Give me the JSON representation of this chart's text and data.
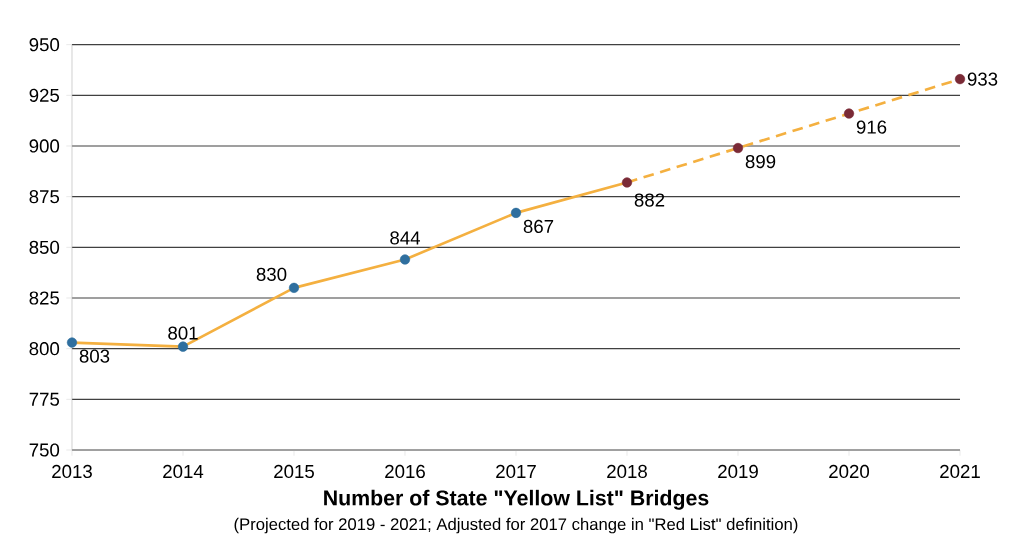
{
  "chart_data": {
    "type": "line",
    "title": "Number of State \"Yellow List\" Bridges",
    "subtitle": "(Projected for 2019 - 2021; Adjusted for 2017 change in \"Red List\" definition)",
    "xlim": [
      2013,
      2021
    ],
    "xticks": [
      2013,
      2014,
      2015,
      2016,
      2017,
      2018,
      2019,
      2020,
      2021
    ],
    "ylim": [
      750,
      950
    ],
    "yticks": [
      750,
      775,
      800,
      825,
      850,
      875,
      900,
      925,
      950
    ],
    "grid": "y",
    "series": [
      {
        "color": "#f4b040",
        "line_style": "solid",
        "x": [
          2013,
          2014,
          2015,
          2016,
          2017,
          2018
        ],
        "values": [
          803,
          801,
          830,
          844,
          867,
          882
        ]
      },
      {
        "color": "#f4b040",
        "line_style": "dashed",
        "x": [
          2018,
          2019,
          2020,
          2021
        ],
        "values": [
          882,
          899,
          916,
          933
        ]
      },
      {
        "type": "scatter",
        "color": "#2f6f9f",
        "marker": "circle",
        "x": [
          2013,
          2014,
          2015,
          2016,
          2017
        ],
        "values": [
          803,
          801,
          830,
          844,
          867
        ],
        "value_labels": [
          "803",
          "801",
          "830",
          "844",
          "867"
        ]
      },
      {
        "type": "scatter",
        "color": "#7a2a36",
        "marker": "circle",
        "x": [
          2018,
          2019,
          2020,
          2021
        ],
        "values": [
          882,
          899,
          916,
          933
        ],
        "value_labels": [
          "882",
          "899",
          "916",
          "933"
        ]
      }
    ]
  }
}
